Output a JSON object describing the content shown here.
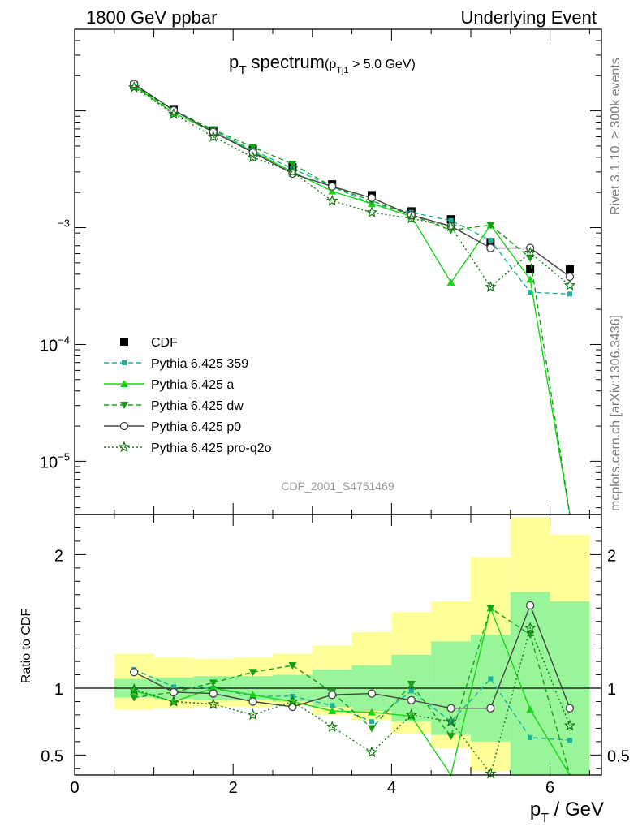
{
  "header": {
    "left": "1800 GeV ppbar",
    "right": "Underlying Event"
  },
  "side": {
    "top": "Rivet 3.1.10, ≥ 300k events",
    "bottom": "mcplots.cern.ch [arXiv:1306.3436]"
  },
  "chart_data": [
    {
      "type": "line",
      "title_main": "p",
      "title_main_sub": "T",
      "title_main_rest": " spectrum",
      "title_cond": "(p",
      "title_cond_sub": "Tj1",
      "title_cond_rest": " > 5.0 GeV)",
      "watermark": "CDF_2001_S4751469",
      "yscale": "log",
      "xlim": [
        0,
        6.65
      ],
      "ylim": [
        3.5e-06,
        0.05
      ],
      "ytick_labels": [
        {
          "value": 0.001,
          "base": "",
          "exp": "−3"
        },
        {
          "value": 0.0001,
          "base": "10",
          "exp": "−4"
        },
        {
          "value": 1e-05,
          "base": "10",
          "exp": "−5"
        }
      ],
      "legend_position": "left",
      "x": [
        0.75,
        1.25,
        1.75,
        2.25,
        2.75,
        3.25,
        3.75,
        4.25,
        4.75,
        5.25,
        5.75,
        6.25
      ],
      "series": [
        {
          "name": "CDF",
          "color": "#000000",
          "marker": "square",
          "line": "none",
          "values": [
            0.0165,
            0.0102,
            0.0068,
            0.0047,
            0.0033,
            0.00235,
            0.0019,
            0.00138,
            0.00118,
            0.00075,
            0.00044,
            0.00044
          ]
        },
        {
          "name": "Pythia 6.425 359",
          "color": "#1ab29b",
          "marker": "square-small",
          "line": "dashed",
          "values": [
            0.0166,
            0.0102,
            0.0068,
            0.0046,
            0.0032,
            0.00225,
            0.0016,
            0.00135,
            0.00115,
            0.00078,
            0.00028,
            0.00027
          ]
        },
        {
          "name": "Pythia 6.425 a",
          "color": "#17d617",
          "marker": "triangle-up",
          "line": "solid",
          "values": [
            0.0163,
            0.0096,
            0.0066,
            0.0045,
            0.003,
            0.00205,
            0.0016,
            0.00125,
            0.00034,
            0.00105,
            0.00036,
            0.0
          ]
        },
        {
          "name": "Pythia 6.425 dw",
          "color": "#179e17",
          "marker": "triangle-down",
          "line": "dashed",
          "values": [
            0.0165,
            0.01,
            0.0069,
            0.0049,
            0.0035,
            0.00225,
            0.0017,
            0.00128,
            0.00095,
            0.00105,
            0.00055,
            0.0
          ]
        },
        {
          "name": "Pythia 6.425 p0",
          "color": "#444444",
          "marker": "circle-open",
          "line": "solid",
          "values": [
            0.017,
            0.0101,
            0.0066,
            0.0044,
            0.0029,
            0.00225,
            0.0018,
            0.00128,
            0.00103,
            0.00067,
            0.00067,
            0.00038
          ]
        },
        {
          "name": "Pythia 6.425 pro-q2o",
          "color": "#137513",
          "marker": "star-open",
          "line": "dotted",
          "values": [
            0.0159,
            0.0094,
            0.006,
            0.004,
            0.003,
            0.0017,
            0.00135,
            0.0012,
            0.00102,
            0.00031,
            0.00061,
            0.00032
          ]
        }
      ]
    },
    {
      "type": "line",
      "ylabel": "Ratio to CDF",
      "xlabel_main": "p",
      "xlabel_sub": "T",
      "xlabel_rest": " / GeV",
      "xlim": [
        0,
        6.65
      ],
      "ylim": [
        0.35,
        2.3
      ],
      "yticks": [
        {
          "value": 0.5,
          "label": "0.5"
        },
        {
          "value": 1,
          "label": "1"
        },
        {
          "value": 2,
          "label": "2"
        }
      ],
      "xticks": [
        {
          "value": 0,
          "label": "0"
        },
        {
          "value": 2,
          "label": "2"
        },
        {
          "value": 4,
          "label": "4"
        },
        {
          "value": 6,
          "label": "6"
        }
      ],
      "reference_line": 1,
      "x": [
        0.75,
        1.25,
        1.75,
        2.25,
        2.75,
        3.25,
        3.75,
        4.25,
        4.75,
        5.25,
        5.75,
        6.25
      ],
      "bins": [
        [
          0.5,
          1.0
        ],
        [
          1.0,
          1.5
        ],
        [
          1.5,
          2.0
        ],
        [
          2.0,
          2.5
        ],
        [
          2.5,
          3.0
        ],
        [
          3.0,
          3.5
        ],
        [
          3.5,
          4.0
        ],
        [
          4.0,
          4.5
        ],
        [
          4.5,
          5.0
        ],
        [
          5.0,
          5.5
        ],
        [
          5.5,
          6.0
        ],
        [
          6.0,
          6.5
        ]
      ],
      "band_inner": [
        [
          0.93,
          1.07
        ],
        [
          0.92,
          1.08
        ],
        [
          0.91,
          1.09
        ],
        [
          0.91,
          1.09
        ],
        [
          0.9,
          1.1
        ],
        [
          0.86,
          1.14
        ],
        [
          0.83,
          1.17
        ],
        [
          0.75,
          1.25
        ],
        [
          0.65,
          1.35
        ],
        [
          0.6,
          1.4
        ],
        [
          0.28,
          1.72
        ],
        [
          0.35,
          1.65
        ]
      ],
      "band_outer": [
        [
          0.84,
          1.26
        ],
        [
          0.85,
          1.23
        ],
        [
          0.86,
          1.22
        ],
        [
          0.86,
          1.23
        ],
        [
          0.87,
          1.26
        ],
        [
          0.8,
          1.32
        ],
        [
          0.76,
          1.42
        ],
        [
          0.66,
          1.57
        ],
        [
          0.55,
          1.65
        ],
        [
          0.38,
          1.98
        ],
        [
          0.2,
          2.28
        ],
        [
          0.25,
          2.15
        ]
      ],
      "series": [
        {
          "name": "Pythia 6.425 359",
          "color": "#1ab29b",
          "marker": "square-small",
          "line": "dashed",
          "values": [
            1.14,
            1.01,
            1.0,
            0.94,
            0.94,
            0.87,
            0.75,
            0.98,
            0.75,
            1.07,
            0.63,
            0.61
          ]
        },
        {
          "name": "Pythia 6.425 a",
          "color": "#17d617",
          "marker": "triangle-up",
          "line": "solid",
          "values": [
            0.98,
            0.9,
            1.0,
            0.95,
            0.9,
            0.83,
            0.82,
            0.79,
            0.25,
            1.6,
            0.84,
            0.1
          ]
        },
        {
          "name": "Pythia 6.425 dw",
          "color": "#179e17",
          "marker": "triangle-down",
          "line": "dashed",
          "values": [
            0.93,
            0.97,
            1.04,
            1.12,
            1.17,
            0.97,
            0.7,
            1.03,
            0.64,
            1.6,
            1.4,
            0.1
          ]
        },
        {
          "name": "Pythia 6.425 p0",
          "color": "#444444",
          "marker": "circle-open",
          "line": "solid",
          "values": [
            1.12,
            0.97,
            0.96,
            0.9,
            0.86,
            0.95,
            0.96,
            0.91,
            0.85,
            0.85,
            1.62,
            0.85
          ]
        },
        {
          "name": "Pythia 6.425 pro-q2o",
          "color": "#137513",
          "marker": "star-open",
          "line": "dotted",
          "values": [
            0.99,
            0.9,
            0.88,
            0.8,
            0.9,
            0.71,
            0.52,
            0.8,
            0.75,
            0.36,
            1.45,
            0.72
          ]
        }
      ]
    }
  ]
}
